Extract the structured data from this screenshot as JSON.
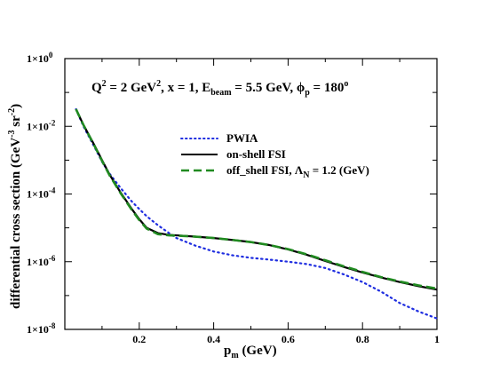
{
  "chart_data": {
    "type": "line",
    "title": "",
    "annotation": {
      "q2_label": "Q",
      "q2_sup": "2",
      "q2_value": " = 2 GeV",
      "q2_unit_sup": "2",
      "x_text": ", x = 1, E",
      "ebeam_sub": "beam",
      "ebeam_value": " = 5.5 GeV, ",
      "phi_symbol": "ϕ",
      "phi_sub": "p",
      "phi_value": " = 180",
      "phi_sup": "o"
    },
    "xlabel": {
      "main": "p",
      "sub": "m",
      "rest": " (GeV)"
    },
    "ylabel": {
      "main": "differential cross section (GeV",
      "sup1": "-3",
      "mid": " sr",
      "sup2": "-2",
      "end": ")"
    },
    "xlim": [
      0,
      1
    ],
    "ylim_log10": [
      -8,
      0
    ],
    "yscale": "log",
    "xticks": [
      "0.2",
      "0.4",
      "0.6",
      "0.8",
      "1"
    ],
    "yticks": [
      {
        "base": "1×10",
        "exp": "0"
      },
      {
        "base": "1×10",
        "exp": "-2"
      },
      {
        "base": "1×10",
        "exp": "-4"
      },
      {
        "base": "1×10",
        "exp": "-6"
      },
      {
        "base": "1×10",
        "exp": "-8"
      }
    ],
    "legend_placement": "center",
    "series": [
      {
        "name": "PWIA",
        "color": "#1f2ee0",
        "style": "dotted",
        "x": [
          0.03,
          0.05,
          0.08,
          0.1,
          0.12,
          0.15,
          0.18,
          0.2,
          0.22,
          0.25,
          0.28,
          0.3,
          0.35,
          0.4,
          0.45,
          0.5,
          0.55,
          0.6,
          0.65,
          0.7,
          0.75,
          0.8,
          0.85,
          0.9,
          0.95,
          1.0
        ],
        "y": [
          0.032,
          0.01,
          0.0024,
          0.0009,
          0.0004,
          0.00015,
          6e-05,
          3.6e-05,
          2.2e-05,
          1.2e-05,
          7e-06,
          5e-06,
          3e-06,
          2e-06,
          1.55e-06,
          1.3e-06,
          1.15e-06,
          1e-06,
          8.5e-07,
          6.5e-07,
          4.2e-07,
          2.5e-07,
          1.3e-07,
          6e-08,
          3.4e-08,
          2.1e-08
        ]
      },
      {
        "name": "on-shell FSI",
        "color": "#000000",
        "style": "solid",
        "x": [
          0.03,
          0.05,
          0.08,
          0.1,
          0.12,
          0.15,
          0.18,
          0.2,
          0.22,
          0.25,
          0.28,
          0.3,
          0.35,
          0.4,
          0.45,
          0.5,
          0.55,
          0.6,
          0.65,
          0.7,
          0.75,
          0.8,
          0.85,
          0.9,
          0.95,
          1.0
        ],
        "y": [
          0.032,
          0.011,
          0.0027,
          0.001,
          0.00038,
          0.00011,
          3.6e-05,
          1.8e-05,
          1e-05,
          7e-06,
          6.2e-06,
          6e-06,
          5.5e-06,
          5e-06,
          4.4e-06,
          3.8e-06,
          3.1e-06,
          2.3e-06,
          1.6e-06,
          1.05e-06,
          7e-07,
          4.8e-07,
          3.4e-07,
          2.5e-07,
          1.9e-07,
          1.5e-07
        ]
      },
      {
        "name": "off_shell FSI, ",
        "name_lambda": "Λ",
        "name_sub": "N",
        "name_rest": " = 1.2 (GeV)",
        "color": "#208a20",
        "style": "dashed",
        "x": [
          0.03,
          0.05,
          0.08,
          0.1,
          0.12,
          0.15,
          0.18,
          0.2,
          0.22,
          0.25,
          0.28,
          0.3,
          0.35,
          0.4,
          0.45,
          0.5,
          0.55,
          0.6,
          0.65,
          0.7,
          0.75,
          0.8,
          0.85,
          0.9,
          0.95,
          1.0
        ],
        "y": [
          0.032,
          0.011,
          0.0026,
          0.00095,
          0.00036,
          0.000105,
          3.4e-05,
          1.7e-05,
          9.5e-06,
          6.5e-06,
          6e-06,
          5.9e-06,
          5.5e-06,
          5e-06,
          4.4e-06,
          3.8e-06,
          3.1e-06,
          2.35e-06,
          1.65e-06,
          1.1e-06,
          7.3e-07,
          5e-07,
          3.5e-07,
          2.6e-07,
          2e-07,
          1.6e-07
        ]
      }
    ]
  }
}
